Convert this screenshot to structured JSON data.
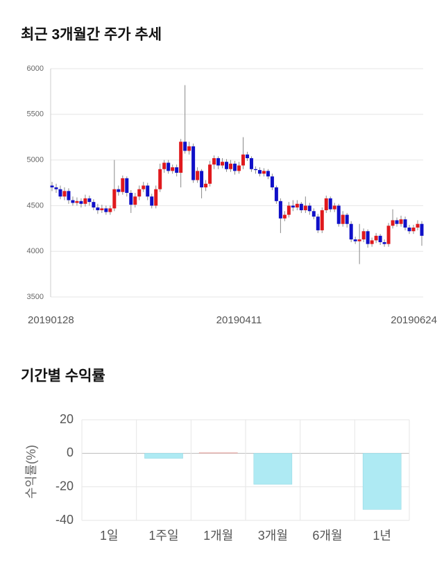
{
  "chart_data": [
    {
      "type": "candlestick",
      "title": "최근 3개월간 주가 추세",
      "categories": [
        "20190128",
        null,
        null,
        null,
        null,
        null,
        null,
        null,
        null,
        null,
        null,
        null,
        null,
        null,
        null,
        null,
        null,
        null,
        null,
        null,
        null,
        null,
        null,
        null,
        null,
        null,
        null,
        null,
        null,
        null,
        null,
        null,
        null,
        null,
        null,
        null,
        null,
        null,
        null,
        null,
        null,
        null,
        null,
        null,
        null,
        "20190411",
        null,
        null,
        null,
        null,
        null,
        null,
        null,
        null,
        null,
        null,
        null,
        null,
        null,
        null,
        null,
        null,
        null,
        null,
        null,
        null,
        null,
        null,
        null,
        null,
        null,
        null,
        null,
        null,
        null,
        null,
        null,
        null,
        null,
        null,
        null,
        null,
        null,
        null,
        null,
        null,
        null,
        null,
        null,
        "20190624"
      ],
      "open": [
        4720,
        4700,
        4680,
        4600,
        4660,
        4560,
        4530,
        4550,
        4520,
        4580,
        4540,
        4480,
        4450,
        4470,
        4430,
        4470,
        4680,
        4650,
        4800,
        4640,
        4510,
        4600,
        4680,
        4720,
        4600,
        4500,
        4680,
        4900,
        4970,
        4880,
        4920,
        4860,
        5200,
        5100,
        5150,
        4780,
        4880,
        4700,
        4740,
        4950,
        5020,
        4940,
        4980,
        4900,
        4960,
        4880,
        4940,
        5060,
        5020,
        4900,
        4890,
        4850,
        4880,
        4820,
        4700,
        4550,
        4360,
        4400,
        4500,
        4480,
        4520,
        4450,
        4500,
        4440,
        4380,
        4230,
        4450,
        4580,
        4460,
        4500,
        4300,
        4400,
        4300,
        4130,
        4110,
        4130,
        4220,
        4080,
        4120,
        4170,
        4100,
        4080,
        4280,
        4340,
        4300,
        4350,
        4260,
        4220,
        4260,
        4300
      ],
      "high": [
        4760,
        4740,
        4720,
        4700,
        4690,
        4600,
        4590,
        4580,
        4620,
        4610,
        4570,
        4520,
        4510,
        4500,
        4500,
        5000,
        4720,
        4830,
        4820,
        4670,
        4640,
        4720,
        4760,
        4750,
        4630,
        4720,
        4960,
        5000,
        5000,
        4950,
        4950,
        5230,
        5820,
        5200,
        5180,
        4920,
        4900,
        4780,
        4990,
        5050,
        5040,
        5020,
        5010,
        5000,
        4990,
        4980,
        5250,
        5090,
        5040,
        4930,
        4920,
        4910,
        4900,
        4850,
        4720,
        4580,
        4440,
        4540,
        4560,
        4560,
        4540,
        4600,
        4530,
        4470,
        4410,
        4480,
        4610,
        4600,
        4530,
        4520,
        4440,
        4420,
        4330,
        4160,
        4300,
        4250,
        4240,
        4150,
        4200,
        4190,
        4130,
        4310,
        4460,
        4370,
        4390,
        4380,
        4290,
        4290,
        4340,
        4330
      ],
      "low": [
        4660,
        4640,
        4570,
        4560,
        4520,
        4500,
        4500,
        4480,
        4490,
        4500,
        4450,
        4410,
        4420,
        4400,
        4400,
        4440,
        4610,
        4620,
        4600,
        4420,
        4480,
        4560,
        4650,
        4560,
        4470,
        4470,
        4650,
        4860,
        4850,
        4850,
        4820,
        4700,
        5070,
        5060,
        4750,
        4750,
        4580,
        4660,
        4710,
        4900,
        4900,
        4910,
        4870,
        4870,
        4840,
        4850,
        4900,
        4990,
        4870,
        4850,
        4820,
        4820,
        4790,
        4670,
        4520,
        4200,
        4330,
        4370,
        4440,
        4450,
        4420,
        4420,
        4400,
        4350,
        4200,
        4200,
        4420,
        4430,
        4430,
        4270,
        4270,
        4260,
        4100,
        4080,
        3860,
        4100,
        4040,
        4050,
        4090,
        4070,
        4050,
        4050,
        4250,
        4270,
        4270,
        4230,
        4190,
        4190,
        4230,
        4060
      ],
      "close": [
        4700,
        4680,
        4600,
        4660,
        4560,
        4530,
        4550,
        4520,
        4580,
        4540,
        4480,
        4450,
        4470,
        4430,
        4470,
        4680,
        4650,
        4800,
        4640,
        4510,
        4600,
        4680,
        4720,
        4600,
        4500,
        4680,
        4900,
        4970,
        4880,
        4920,
        4860,
        5200,
        5100,
        5150,
        4780,
        4880,
        4700,
        4740,
        4950,
        5020,
        4940,
        4980,
        4900,
        4960,
        4880,
        4940,
        5060,
        5020,
        4900,
        4890,
        4850,
        4880,
        4820,
        4700,
        4550,
        4360,
        4400,
        4500,
        4480,
        4520,
        4450,
        4500,
        4440,
        4380,
        4230,
        4450,
        4580,
        4460,
        4500,
        4300,
        4400,
        4300,
        4130,
        4110,
        4130,
        4220,
        4080,
        4120,
        4170,
        4100,
        4080,
        4280,
        4340,
        4300,
        4350,
        4260,
        4220,
        4260,
        4300,
        4170
      ],
      "up_color": "#e0191d",
      "down_color": "#1010c8",
      "ylim": [
        3500,
        6000
      ],
      "yticks": [
        3500,
        4000,
        4500,
        5000,
        5500,
        6000
      ],
      "grid": true
    },
    {
      "type": "bar",
      "title": "기간별 수익률",
      "y_label": "수익률(%)",
      "categories": [
        "1일",
        "1주일",
        "1개월",
        "3개월",
        "6개월",
        "1년"
      ],
      "values": [
        null,
        -3,
        0.5,
        -18.5,
        null,
        -33.5
      ],
      "positive_color": "#f2c7c4",
      "negative_color": "#aeeaf3",
      "ylim": [
        -40,
        20
      ],
      "yticks": [
        -40,
        -20,
        0,
        20
      ],
      "grid": true
    }
  ]
}
